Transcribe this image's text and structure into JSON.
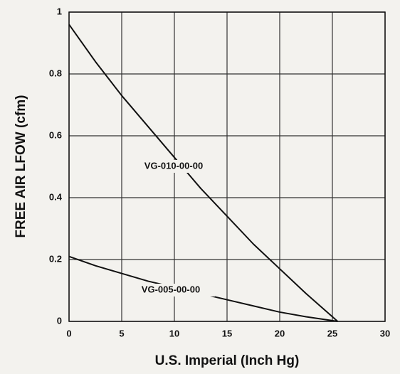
{
  "chart_data": {
    "type": "line",
    "xlabel": "U.S. Imperial (Inch Hg)",
    "ylabel": "FREE AIR LFOW (cfm)",
    "x": [
      0,
      2.5,
      5,
      7.5,
      10,
      12.5,
      15,
      17.5,
      20,
      22.5,
      25.5
    ],
    "series": [
      {
        "name": "VG-010-00-00",
        "color": "#111111",
        "values": [
          0.96,
          0.84,
          0.73,
          0.63,
          0.53,
          0.43,
          0.34,
          0.25,
          0.17,
          0.09,
          0
        ]
      },
      {
        "name": "VG-005-00-00",
        "color": "#111111",
        "values": [
          0.21,
          0.18,
          0.155,
          0.13,
          0.11,
          0.09,
          0.07,
          0.05,
          0.03,
          0.015,
          0
        ]
      }
    ],
    "xlim": [
      0,
      30
    ],
    "xticks": [
      0,
      5,
      10,
      15,
      20,
      25,
      30
    ],
    "ylim": [
      0,
      1
    ],
    "yticks": [
      0,
      0.2,
      0.4,
      0.6,
      0.8,
      1
    ],
    "grid": true
  }
}
